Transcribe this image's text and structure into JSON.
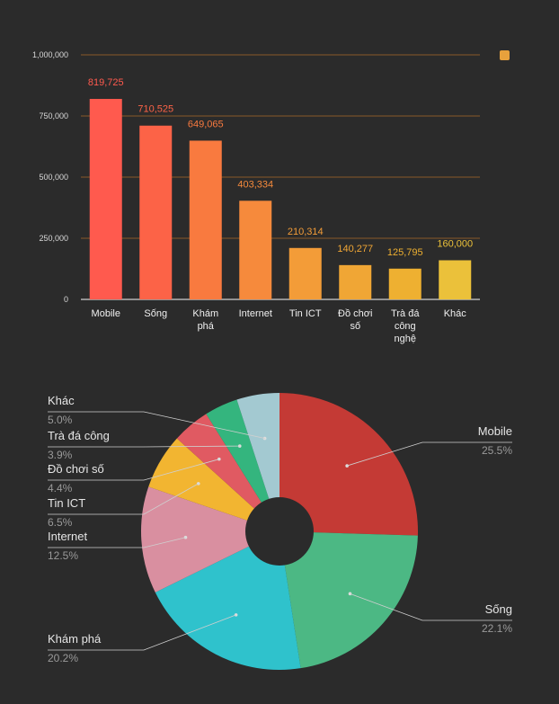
{
  "chart_data": [
    {
      "type": "bar",
      "categories": [
        "Mobile",
        "Sống",
        "Khám phá",
        "Internet",
        "Tin ICT",
        "Đồ chơi số",
        "Trà đá công nghệ",
        "Khác"
      ],
      "category_lines": [
        [
          "Mobile"
        ],
        [
          "Sống"
        ],
        [
          "Khám",
          "phá"
        ],
        [
          "Internet"
        ],
        [
          "Tin ICT"
        ],
        [
          "Đồ chơi",
          "số"
        ],
        [
          "Trà đá",
          "công",
          "nghệ"
        ],
        [
          "Khác"
        ]
      ],
      "values": [
        819725,
        710525,
        649065,
        403334,
        210314,
        140277,
        125795,
        160000
      ],
      "value_labels": [
        "819,725",
        "710,525",
        "649,065",
        "403,334",
        "210,314",
        "140,277",
        "125,795",
        "160,000"
      ],
      "colors": [
        "#ff5a4e",
        "#fc6347",
        "#f97a3f",
        "#f68a3c",
        "#f39c38",
        "#f0a635",
        "#eeb031",
        "#ebc13a"
      ],
      "label_colors": [
        "#ff5a4e",
        "#fc6347",
        "#f97a3f",
        "#f68a3c",
        "#f39c38",
        "#f0a635",
        "#eeb031",
        "#ebc13a"
      ],
      "yticks": [
        0,
        250000,
        500000,
        750000,
        1000000
      ],
      "ytick_labels": [
        "0",
        "250,000",
        "500,000",
        "750,000",
        "1,000,000"
      ],
      "ylim": [
        0,
        1000000
      ],
      "grid": true,
      "grid_color": "#a86a2a",
      "legend_swatch_color": "#e8a13c",
      "legend": "top-right",
      "xlabel": "",
      "ylabel": "",
      "title": ""
    },
    {
      "type": "pie",
      "donut": true,
      "labels": [
        "Mobile",
        "Sống",
        "Khám phá",
        "Internet",
        "Tin ICT",
        "Đồ chơi số",
        "Trà đá công",
        "Khác"
      ],
      "values": [
        25.5,
        22.1,
        20.2,
        12.5,
        6.5,
        4.4,
        3.9,
        5.0
      ],
      "percent_labels": [
        "25.5%",
        "22.1%",
        "20.2%",
        "12.5%",
        "6.5%",
        "4.4%",
        "3.9%",
        "5.0%"
      ],
      "colors": [
        "#c43a35",
        "#4cb884",
        "#2fc2cc",
        "#d98fa0",
        "#f2b531",
        "#e05a62",
        "#34b57e",
        "#a3c9d1"
      ],
      "legend": "callout labels"
    }
  ]
}
